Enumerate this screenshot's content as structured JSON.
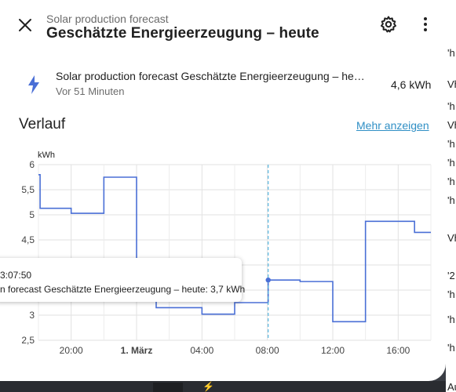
{
  "header": {
    "subtitle": "Solar production forecast",
    "title": "Geschätzte Energieerzeugung – heute"
  },
  "icons": {
    "close": "close-icon",
    "settings": "gear-icon",
    "more": "more-vertical-icon",
    "entity": "flash-icon"
  },
  "entity": {
    "name": "Solar production forecast Geschätzte Energieerzeugung – he…",
    "last_changed": "Vor 51 Minuten",
    "value": "4,6 kWh"
  },
  "history": {
    "title": "Verlauf",
    "more_link": "Mehr anzeigen"
  },
  "tooltip": {
    "time": "3:07:50",
    "text": "n forecast Geschätzte Energieerzeugung – heute: 3,7 kWh"
  },
  "background_fragments": [
    "'h",
    "Vh",
    "'h",
    "Vh",
    "'h",
    "'h",
    "'h",
    "'h",
    "Vh",
    "'2",
    "'h",
    "'h",
    "'h",
    "Aus"
  ],
  "colors": {
    "line": "#4a6fd6",
    "cursor": "#56b6e0",
    "link": "#2f8fc5"
  },
  "chart_data": {
    "type": "line",
    "step": true,
    "unit": "kWh",
    "ylim": [
      2.5,
      6
    ],
    "xlim": [
      18,
      42
    ],
    "y_ticks": [
      "6",
      "5,5",
      "5",
      "4,5",
      "4",
      "3,5",
      "3",
      "2,5"
    ],
    "x_ticks": [
      {
        "x": 20,
        "label": "20:00",
        "bold": false
      },
      {
        "x": 24,
        "label": "1. März",
        "bold": true
      },
      {
        "x": 28,
        "label": "04:00",
        "bold": false
      },
      {
        "x": 32,
        "label": "08:00",
        "bold": false
      },
      {
        "x": 36,
        "label": "12:00",
        "bold": false
      },
      {
        "x": 40,
        "label": "16:00",
        "bold": false
      }
    ],
    "series": [
      {
        "points": [
          [
            18,
            5.8
          ],
          [
            18.1,
            5.13
          ],
          [
            20,
            5.03
          ],
          [
            22,
            5.75
          ],
          [
            24,
            3.85
          ],
          [
            25.2,
            3.15
          ],
          [
            26.2,
            3.15
          ],
          [
            28,
            3.02
          ],
          [
            30,
            3.25
          ],
          [
            32.05,
            3.7
          ],
          [
            34,
            3.67
          ],
          [
            36,
            2.87
          ],
          [
            38,
            4.87
          ],
          [
            41,
            4.65
          ],
          [
            42,
            4.65
          ]
        ]
      }
    ],
    "cursor_x": 32.05,
    "cursor_y": 3.7,
    "grid": true
  }
}
